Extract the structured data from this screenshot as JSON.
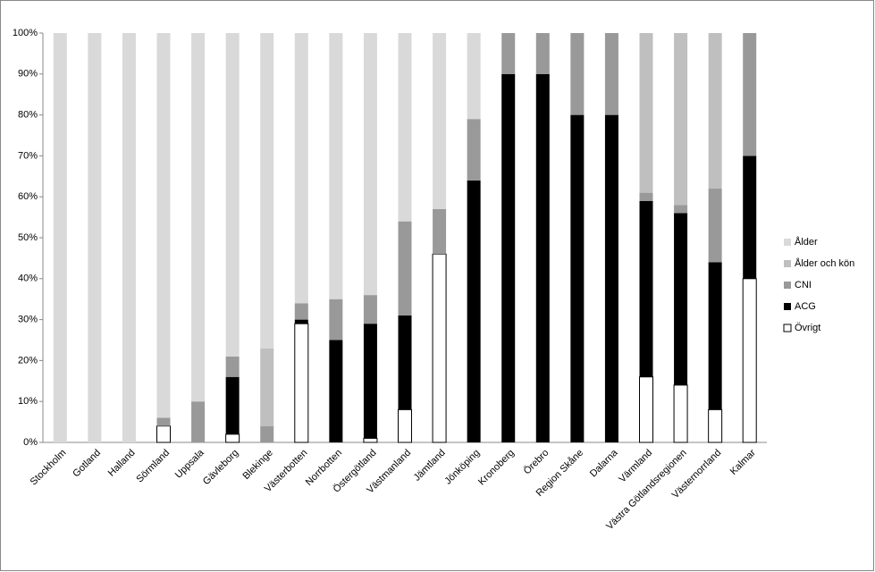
{
  "chart_data": {
    "type": "stacked_bar",
    "categories": [
      "Stockholm",
      "Gotland",
      "Halland",
      "Sörmland",
      "Uppsala",
      "Gävleborg",
      "Blekinge",
      "Västerbotten",
      "Norrbotten",
      "Östergötland",
      "Västmanland",
      "Jämtland",
      "Jönköping",
      "Kronoberg",
      "Örebro",
      "Region Skåne",
      "Dalarna",
      "Värmland",
      "Västra Götlandsregionen",
      "Västernorrland",
      "Kalmar"
    ],
    "series": [
      {
        "name": "Övrigt",
        "color": "#ffffff",
        "values": [
          0,
          0,
          0,
          4,
          0,
          2,
          0,
          29,
          0,
          1,
          8,
          46,
          0,
          0,
          0,
          0,
          0,
          16,
          14,
          8,
          40
        ]
      },
      {
        "name": "ACG",
        "color": "#000000",
        "values": [
          0,
          0,
          0,
          0,
          0,
          14,
          0,
          1,
          25,
          28,
          23,
          0,
          64,
          90,
          90,
          80,
          80,
          43,
          42,
          36,
          30
        ]
      },
      {
        "name": "CNI",
        "color": "#999999",
        "values": [
          0,
          0,
          0,
          2,
          10,
          5,
          4,
          4,
          10,
          7,
          23,
          11,
          15,
          10,
          10,
          20,
          20,
          2,
          2,
          18,
          30
        ]
      },
      {
        "name": "Ålder och kön",
        "color": "#bfbfbf",
        "values": [
          0,
          0,
          0,
          0,
          0,
          0,
          19,
          0,
          0,
          0,
          0,
          0,
          0,
          0,
          0,
          0,
          0,
          39,
          42,
          38,
          0
        ]
      },
      {
        "name": "Ålder",
        "color": "#d9d9d9",
        "values": [
          100,
          100,
          100,
          94,
          90,
          79,
          77,
          66,
          65,
          64,
          46,
          43,
          21,
          0,
          0,
          0,
          0,
          0,
          0,
          0,
          0
        ]
      }
    ],
    "ylim": [
      0,
      100
    ],
    "yticks": [
      {
        "value": 0,
        "label": "0%"
      },
      {
        "value": 10,
        "label": "10%"
      },
      {
        "value": 20,
        "label": "20%"
      },
      {
        "value": 30,
        "label": "30%"
      },
      {
        "value": 40,
        "label": "40%"
      },
      {
        "value": 50,
        "label": "50%"
      },
      {
        "value": 60,
        "label": "60%"
      },
      {
        "value": 70,
        "label": "70%"
      },
      {
        "value": 80,
        "label": "80%"
      },
      {
        "value": 90,
        "label": "90%"
      },
      {
        "value": 100,
        "label": "100%"
      }
    ]
  }
}
